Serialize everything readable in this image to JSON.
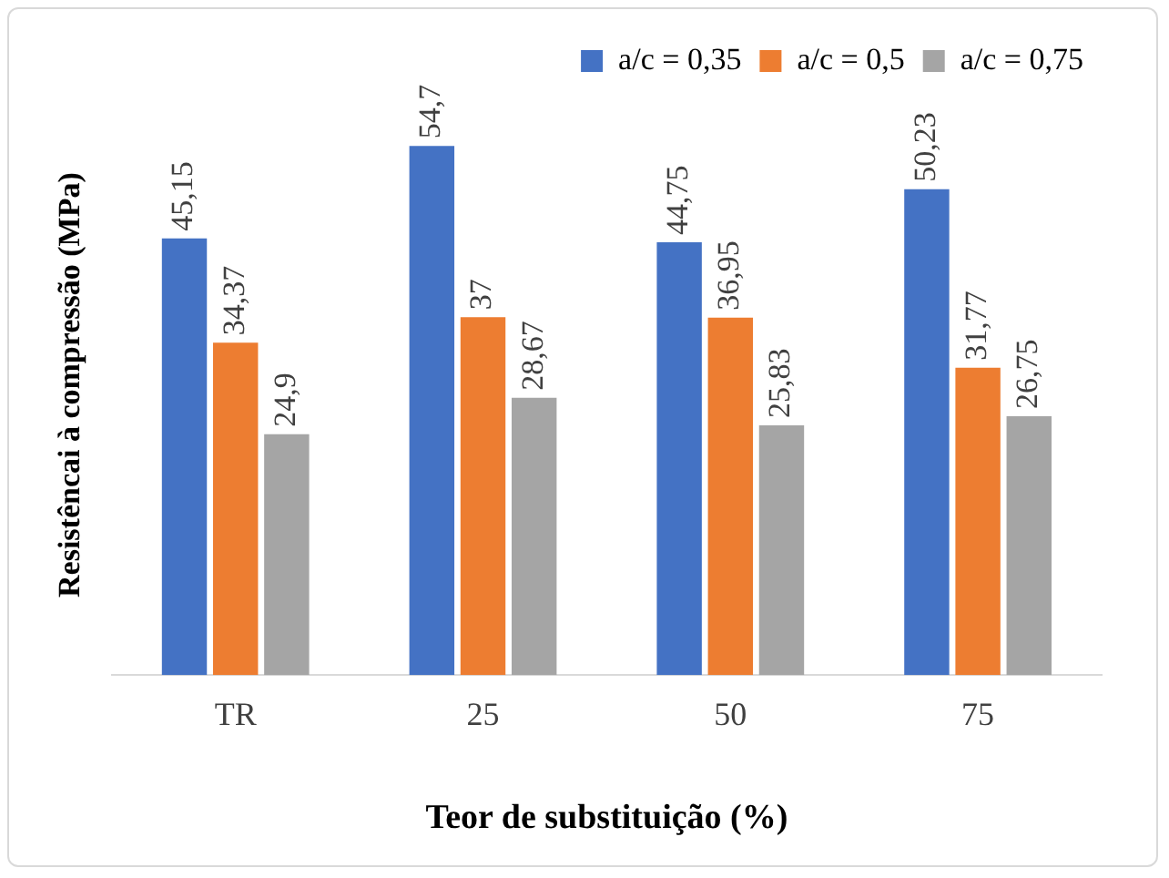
{
  "chart_data": {
    "type": "bar",
    "xlabel": "Teor de substituição (%)",
    "ylabel": "Resistêncai à compressão (MPa)",
    "categories": [
      "TR",
      "25",
      "50",
      "75"
    ],
    "series": [
      {
        "name": "a/c = 0,35",
        "color": "#4472c4",
        "values": [
          45.15,
          54.7,
          44.75,
          50.23
        ],
        "value_labels": [
          "45,15",
          "54,7",
          "44,75",
          "50,23"
        ]
      },
      {
        "name": "a/c = 0,5",
        "color": "#ed7d31",
        "values": [
          34.37,
          37,
          36.95,
          31.77
        ],
        "value_labels": [
          "34,37",
          "37",
          "36,95",
          "31,77"
        ]
      },
      {
        "name": "a/c = 0,75",
        "color": "#a5a5a5",
        "values": [
          24.9,
          28.67,
          25.83,
          26.75
        ],
        "value_labels": [
          "24,9",
          "28,67",
          "25,83",
          "26,75"
        ]
      }
    ],
    "legend": "top right",
    "grid": false
  }
}
